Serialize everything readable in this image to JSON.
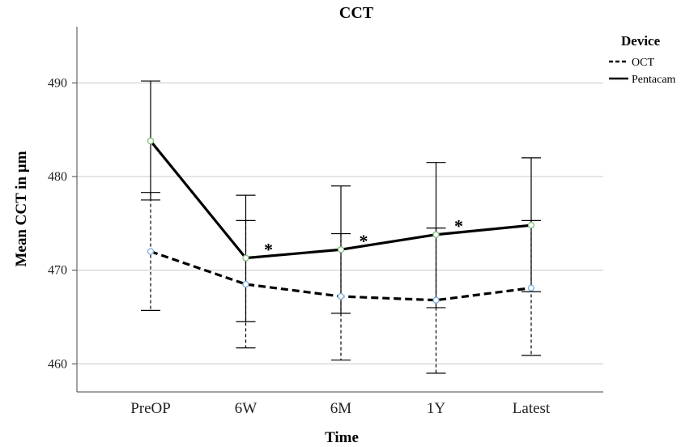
{
  "chart_data": {
    "type": "line",
    "title": "CCT",
    "xlabel": "Time",
    "ylabel": "Mean CCT in µm",
    "categories": [
      "PreOP",
      "6W",
      "6M",
      "1Y",
      "Latest"
    ],
    "ylim": [
      457,
      496
    ],
    "yticks": [
      460,
      470,
      480,
      490
    ],
    "grid": "horizontal",
    "legend": {
      "title": "Device",
      "placement": "top-right"
    },
    "series": [
      {
        "name": "OCT",
        "line_style": "dashed",
        "marker_color": "#7fb2e0",
        "values": [
          472.0,
          468.5,
          467.2,
          466.8,
          468.1
        ],
        "ci_low": [
          465.7,
          461.7,
          460.4,
          459.0,
          460.9
        ],
        "ci_high": [
          478.3,
          475.3,
          473.9,
          474.5,
          475.3
        ]
      },
      {
        "name": "Pentacam",
        "line_style": "solid",
        "marker_color": "#7fbf7f",
        "values": [
          483.8,
          471.3,
          472.2,
          473.8,
          474.8
        ],
        "ci_low": [
          477.5,
          464.5,
          465.4,
          466.0,
          467.7
        ],
        "ci_high": [
          490.2,
          478.0,
          479.0,
          481.5,
          482.0
        ]
      }
    ],
    "annotations": [
      {
        "category": "6W",
        "text": "*"
      },
      {
        "category": "6M",
        "text": "*"
      },
      {
        "category": "1Y",
        "text": "*"
      }
    ]
  }
}
